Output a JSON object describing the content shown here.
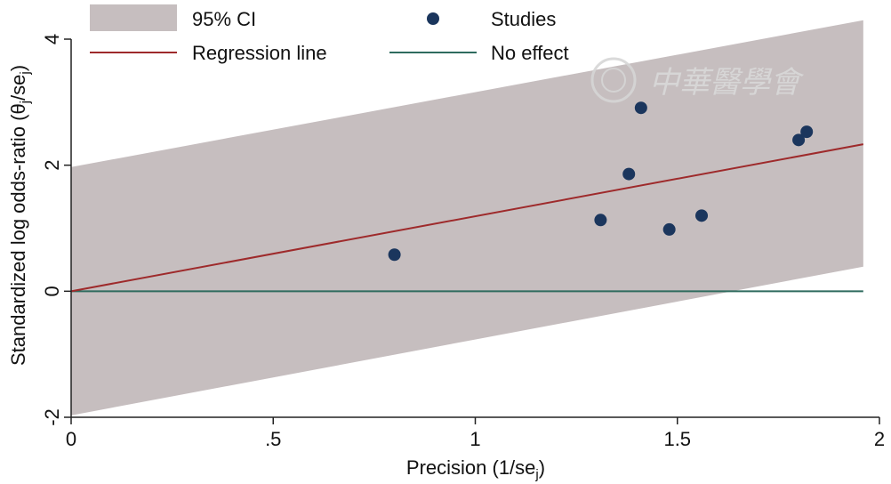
{
  "chart_data": {
    "type": "scatter",
    "xlabel": "Precision (1/se",
    "xlabel_sub": "j",
    "xlabel_close": ")",
    "ylabel": "Standardized log odds-ratio (θ",
    "ylabel_sub1": "j",
    "ylabel_mid": "/se",
    "ylabel_sub2": "j",
    "ylabel_close": ")",
    "xlim": [
      0,
      2
    ],
    "ylim": [
      -2,
      4
    ],
    "x_ticks": [
      0,
      0.5,
      1,
      1.5,
      2
    ],
    "x_tick_labels": [
      "0",
      ".5",
      "1",
      "1.5",
      "2"
    ],
    "y_ticks": [
      -2,
      0,
      2,
      4
    ],
    "y_tick_labels": [
      "-2",
      "0",
      "2",
      "4"
    ],
    "studies": {
      "x": [
        0.8,
        1.31,
        1.38,
        1.41,
        1.48,
        1.56,
        1.8,
        1.82
      ],
      "y": [
        0.58,
        1.13,
        1.86,
        2.91,
        0.98,
        1.2,
        2.4,
        2.53
      ]
    },
    "regression_line": {
      "intercept": 0.0,
      "slope": 1.19,
      "x_range": [
        0,
        1.96
      ]
    },
    "ci_band": {
      "upper": {
        "x": [
          0,
          1.96
        ],
        "y": [
          1.97,
          4.3
        ]
      },
      "lower": {
        "x": [
          0,
          1.96
        ],
        "y": [
          -1.97,
          0.39
        ]
      }
    },
    "no_effect_y": 0,
    "colors": {
      "ci_band": "#c6bebf",
      "regression": "#9e2a2b",
      "studies": "#1b365d",
      "no_effect": "#2e6b5e",
      "axis": "#222222"
    },
    "legend": {
      "placement": "top",
      "items": [
        {
          "key": "ci",
          "label": "95% CI"
        },
        {
          "key": "studies",
          "label": "Studies"
        },
        {
          "key": "regression",
          "label": "Regression line"
        },
        {
          "key": "no_effect",
          "label": "No effect"
        }
      ]
    }
  },
  "watermark": {
    "chars": "中華醫學會"
  }
}
